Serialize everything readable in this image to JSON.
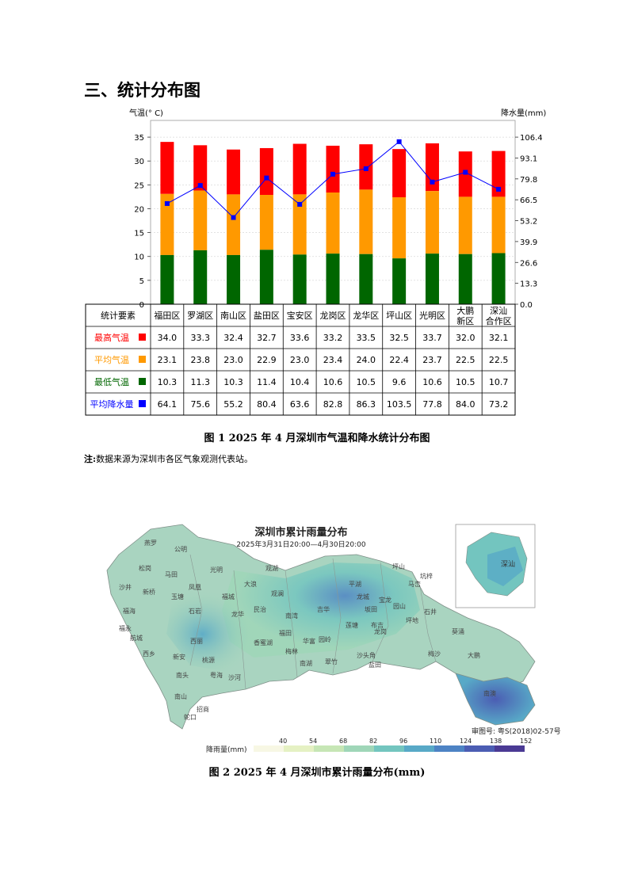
{
  "section_title": "三、统计分布图",
  "chart_data": {
    "type": "bar",
    "y_left_label": "气温(° C)",
    "y_right_label": "降水量(mm)",
    "y_left_ticks": [
      "0",
      "5",
      "10",
      "15",
      "20",
      "25",
      "30",
      "35"
    ],
    "y_right_ticks": [
      "0.0",
      "13.3",
      "26.6",
      "39.9",
      "53.2",
      "66.5",
      "79.8",
      "93.1",
      "106.4"
    ],
    "ylim_left": [
      0,
      38.5
    ],
    "ylim_right": [
      0,
      117.04
    ],
    "categories": [
      "福田区",
      "罗湖区",
      "南山区",
      "盐田区",
      "宝安区",
      "龙岗区",
      "龙华区",
      "坪山区",
      "光明区",
      "大鹏\n新区",
      "深汕\n合作区"
    ],
    "table_header": "统计要素",
    "series": [
      {
        "name": "最高气温",
        "color": "#ff0000",
        "display": [
          "34.0",
          "33.3",
          "32.4",
          "32.7",
          "33.6",
          "33.2",
          "33.5",
          "32.5",
          "33.7",
          "32.0",
          "32.1"
        ],
        "values": [
          34.0,
          33.3,
          32.4,
          32.7,
          33.6,
          33.2,
          33.5,
          32.5,
          33.7,
          32.0,
          32.1
        ]
      },
      {
        "name": "平均气温",
        "color": "#ff9900",
        "display": [
          "23.1",
          "23.8",
          "23.0",
          "22.9",
          "23.0",
          "23.4",
          "24.0",
          "22.4",
          "23.7",
          "22.5",
          "22.5"
        ],
        "values": [
          23.1,
          23.8,
          23.0,
          22.9,
          23.0,
          23.4,
          24.0,
          22.4,
          23.7,
          22.5,
          22.5
        ]
      },
      {
        "name": "最低气温",
        "color": "#006600",
        "display": [
          "10.3",
          "11.3",
          "10.3",
          "11.4",
          "10.4",
          "10.6",
          "10.5",
          "9.6",
          "10.6",
          "10.5",
          "10.7"
        ],
        "values": [
          10.3,
          11.3,
          10.3,
          11.4,
          10.4,
          10.6,
          10.5,
          9.6,
          10.6,
          10.5,
          10.7
        ]
      },
      {
        "name": "平均降水量",
        "color": "#0000ff",
        "display": [
          "64.1",
          "75.6",
          "55.2",
          "80.4",
          "63.6",
          "82.8",
          "86.3",
          "103.5",
          "77.8",
          "84.0",
          "73.2"
        ],
        "values": [
          64.1,
          75.6,
          55.2,
          80.4,
          63.6,
          82.8,
          86.3,
          103.5,
          77.8,
          84.0,
          73.2
        ]
      }
    ]
  },
  "figure1_caption": "图 1   2025 年 4 月深圳市气温和降水统计分布图",
  "note_label": "注:",
  "note_text": "数据来源为深圳市各区气象观测代表站。",
  "map": {
    "title": "深圳市累计雨量分布",
    "subtitle": "2025年3月31日20:00—4月30日20:00",
    "inset_label": "深汕",
    "review_no": "审图号: 粤S(2018)02-57号",
    "legend_label": "降雨量(mm)",
    "legend_ticks": [
      "40",
      "54",
      "68",
      "82",
      "96",
      "110",
      "124",
      "138",
      "152"
    ],
    "legend_colors": [
      "#f7f7e4",
      "#e5f1c3",
      "#c6e6b5",
      "#9fd6b8",
      "#73c5bf",
      "#58a9c7",
      "#4d83c4",
      "#4b5db3",
      "#4a3a94"
    ],
    "place_labels": [
      "燕罗",
      "公明",
      "松岗",
      "马田",
      "光明",
      "凤凰",
      "新桥",
      "沙井",
      "玉塘",
      "福海",
      "石岩",
      "福永",
      "福城",
      "观湖",
      "大浪",
      "观澜",
      "龙华",
      "民治",
      "航城",
      "西乡",
      "新安",
      "西丽",
      "桃源",
      "南头",
      "粤海",
      "沙河",
      "南山",
      "蛇口",
      "招商",
      "福田",
      "香蜜湖",
      "梅林",
      "华富",
      "园岭",
      "南湖",
      "翠竹",
      "沙头角",
      "盐田",
      "梅沙",
      "莲塘",
      "布吉",
      "吉华",
      "坂田",
      "南湾",
      "平湖",
      "宝龙",
      "龙城",
      "园山",
      "龙岗",
      "坪地",
      "坪山",
      "马峦",
      "坑梓",
      "石井",
      "葵涌",
      "大鹏",
      "南澳"
    ]
  },
  "figure2_caption": "图 2   2025 年 4 月深圳市累计雨量分布(mm)"
}
